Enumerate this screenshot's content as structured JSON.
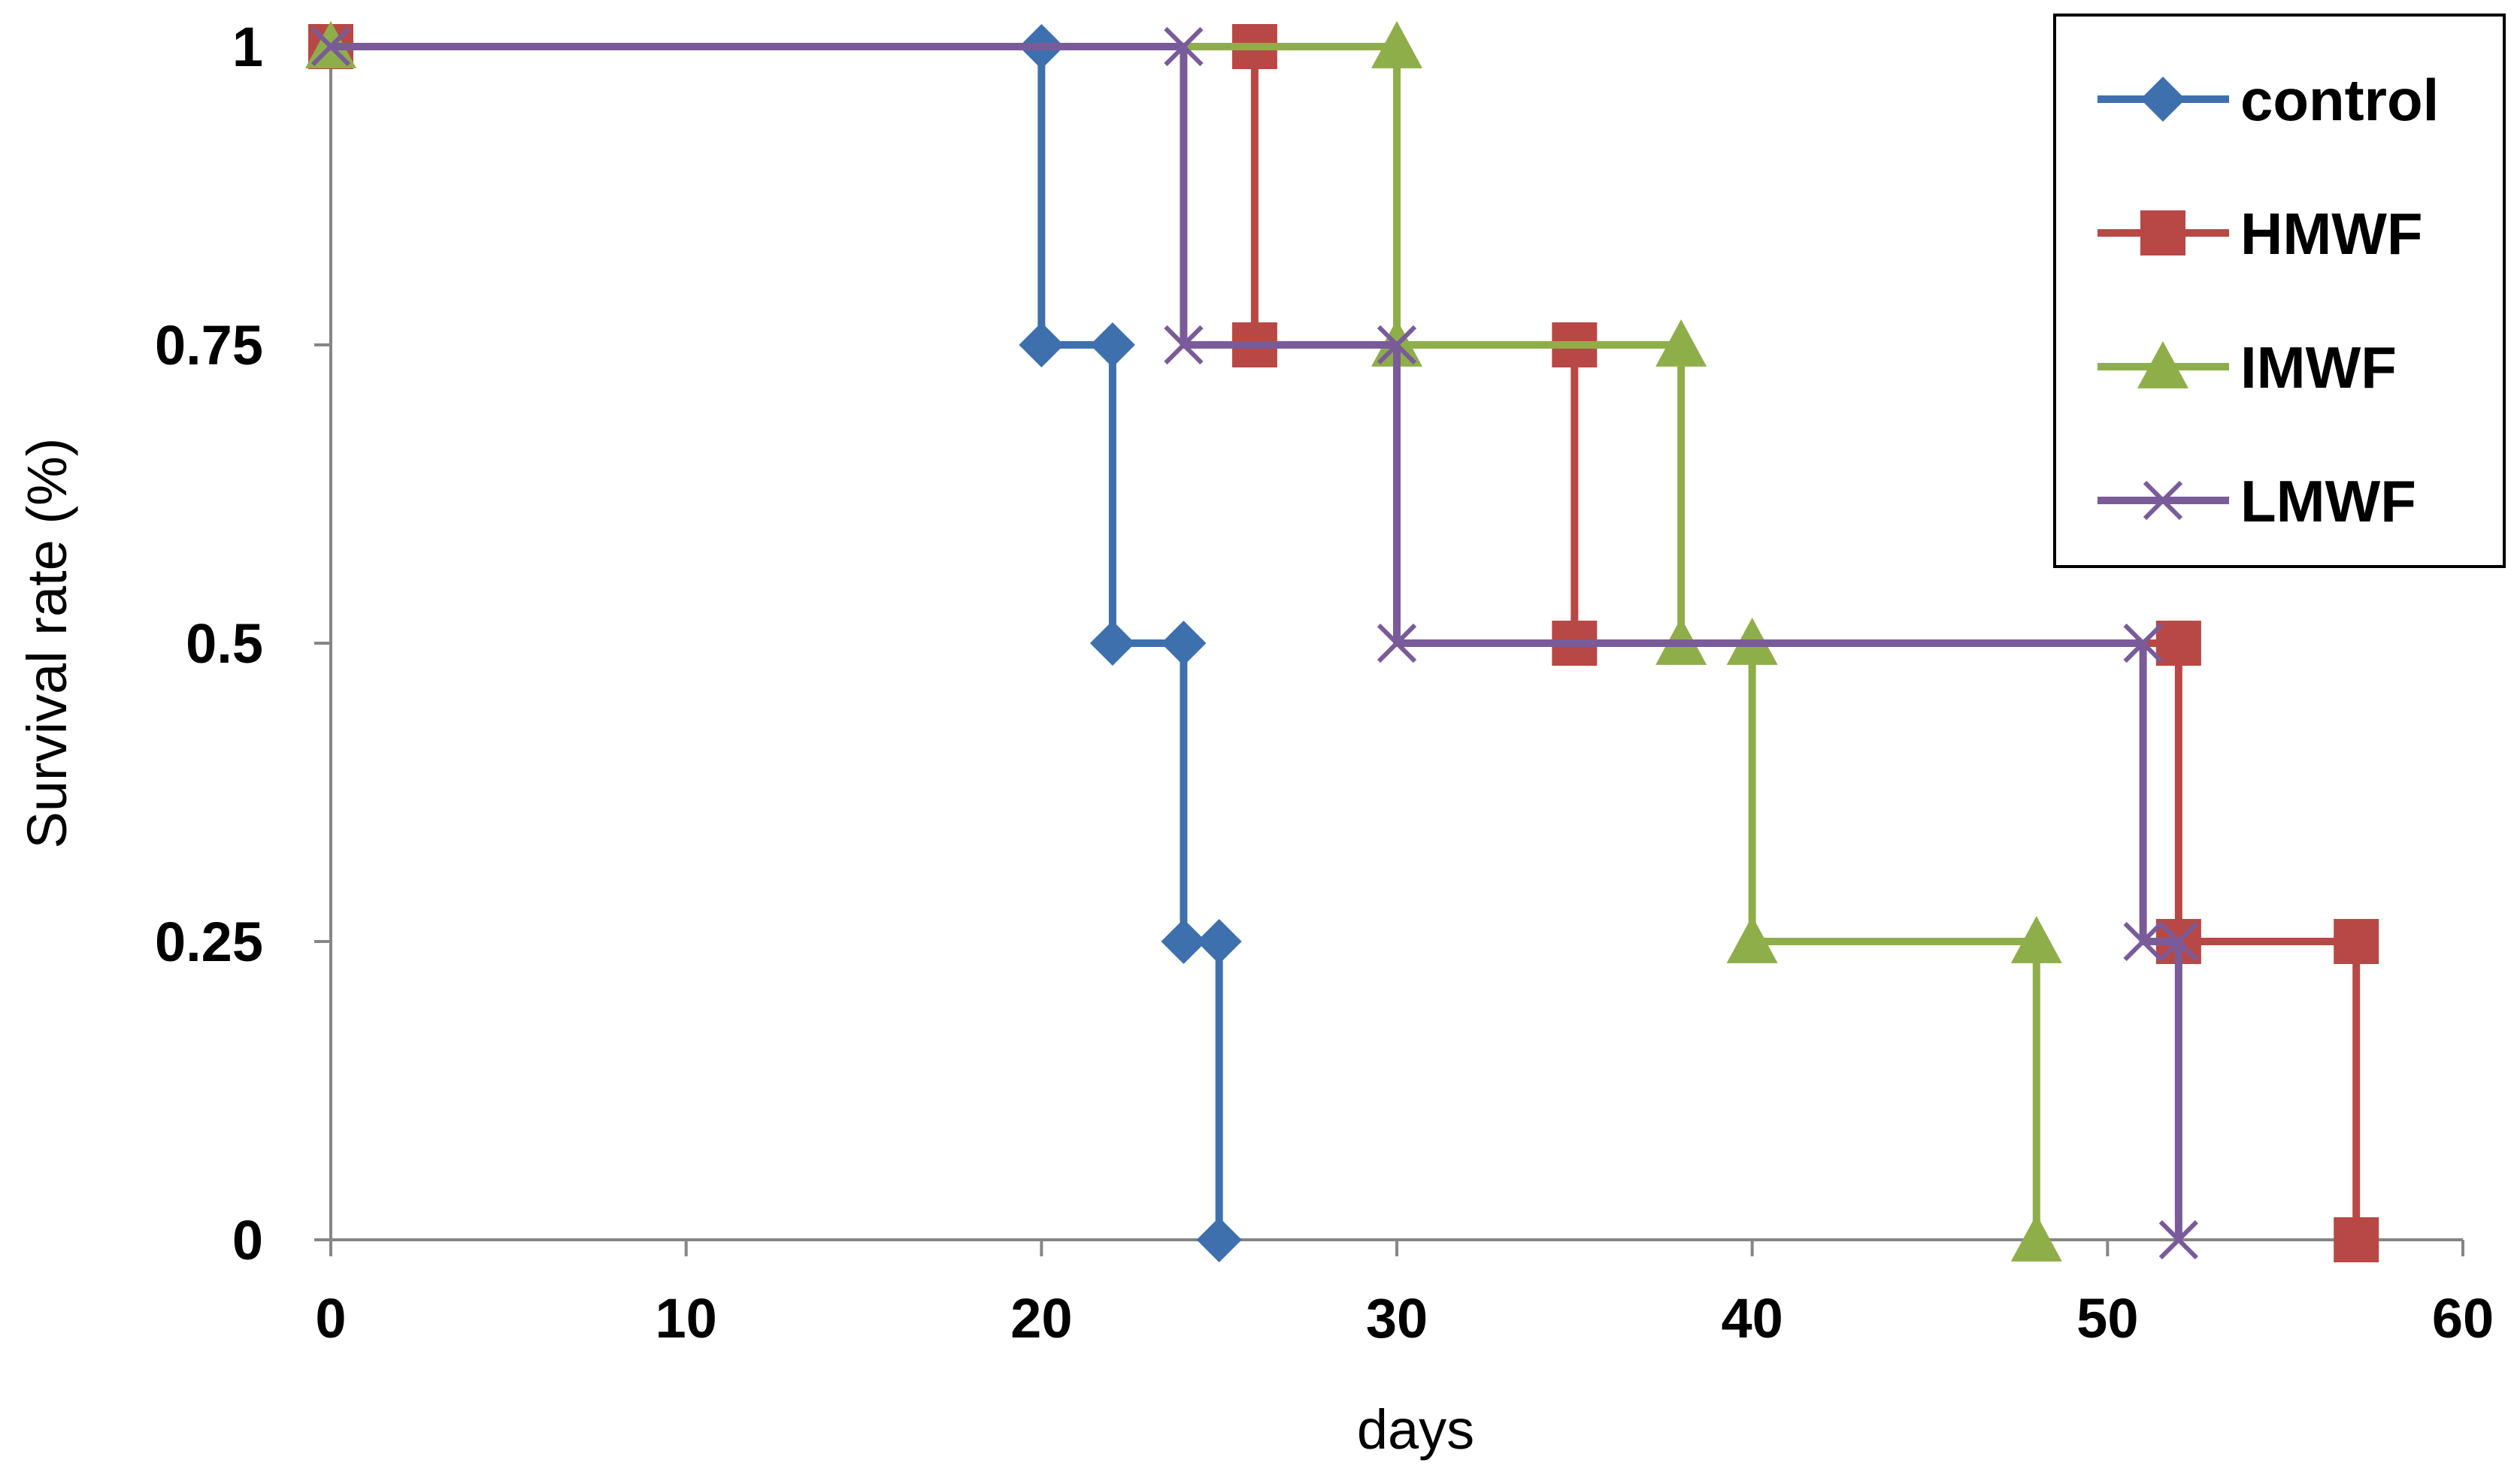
{
  "chart_data": {
    "type": "line",
    "title": "",
    "xlabel": "days",
    "ylabel": "Survival rate (%)",
    "xlim": [
      0,
      60
    ],
    "ylim": [
      0,
      1
    ],
    "x_ticks": [
      0,
      10,
      20,
      30,
      40,
      50,
      60
    ],
    "y_ticks": [
      0,
      0.25,
      0.5,
      0.75,
      1
    ],
    "y_tick_labels": [
      "0",
      "0.25",
      "0.5",
      "0.75",
      "1"
    ],
    "grid": false,
    "legend_position": "top-right",
    "series": [
      {
        "name": "control",
        "color": "#3E70AE",
        "marker": "diamond",
        "points": [
          [
            0,
            1
          ],
          [
            20,
            1
          ],
          [
            20,
            0.75
          ],
          [
            22,
            0.75
          ],
          [
            22,
            0.5
          ],
          [
            24,
            0.5
          ],
          [
            24,
            0.25
          ],
          [
            25,
            0.25
          ],
          [
            25,
            0
          ]
        ]
      },
      {
        "name": "HMWF",
        "color": "#B84845",
        "marker": "square",
        "points": [
          [
            0,
            1
          ],
          [
            26,
            1
          ],
          [
            26,
            0.75
          ],
          [
            35,
            0.75
          ],
          [
            35,
            0.5
          ],
          [
            52,
            0.5
          ],
          [
            52,
            0.25
          ],
          [
            57,
            0.25
          ],
          [
            57,
            0
          ]
        ]
      },
      {
        "name": "IMWF",
        "color": "#8EAE4A",
        "marker": "triangle",
        "points": [
          [
            0,
            1
          ],
          [
            30,
            1
          ],
          [
            30,
            0.75
          ],
          [
            38,
            0.75
          ],
          [
            38,
            0.5
          ],
          [
            40,
            0.5
          ],
          [
            40,
            0.25
          ],
          [
            48,
            0.25
          ],
          [
            48,
            0
          ]
        ]
      },
      {
        "name": "LMWF",
        "color": "#7A5B9A",
        "marker": "x",
        "points": [
          [
            0,
            1
          ],
          [
            24,
            1
          ],
          [
            24,
            0.75
          ],
          [
            30,
            0.75
          ],
          [
            30,
            0.5
          ],
          [
            51,
            0.5
          ],
          [
            51,
            0.25
          ],
          [
            52,
            0.25
          ],
          [
            52,
            0
          ]
        ]
      }
    ]
  }
}
